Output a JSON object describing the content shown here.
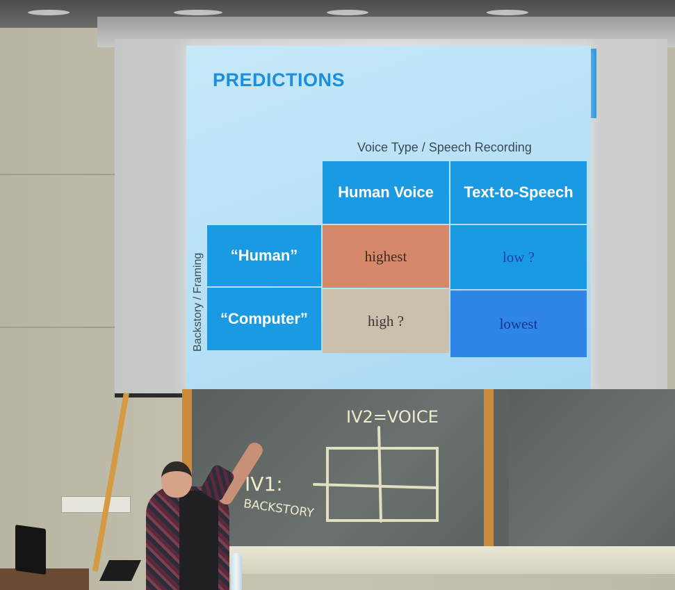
{
  "slide": {
    "title": "PREDICTIONS",
    "column_axis_label": "Voice Type / Speech Recording",
    "row_axis_label": "Backstory / Framing",
    "column_headers": [
      "Human Voice",
      "Text-to-Speech"
    ],
    "row_headers": [
      "“Human”",
      "“Computer”"
    ],
    "cells": [
      [
        "highest",
        "low ?"
      ],
      [
        "high ?",
        "lowest"
      ]
    ],
    "cell_colors": [
      [
        "#d5886a",
        "#1a9ae3"
      ],
      [
        "#cbbfae",
        "#2f86e6"
      ]
    ],
    "cell_text_colors": [
      [
        "#3a2a22",
        "#1a3fa8"
      ],
      [
        "#3a3430",
        "#16338f"
      ]
    ]
  },
  "chalkboard": {
    "column_label": "IV2=VOICE",
    "row_label_top": "IV1:",
    "row_label_bottom": "BACKSTORY"
  },
  "colors": {
    "accent": "#1b8ee0",
    "header_cell": "#1a9ae3",
    "slide_background": "#b6e0f6",
    "chalk": "#efeccc"
  }
}
